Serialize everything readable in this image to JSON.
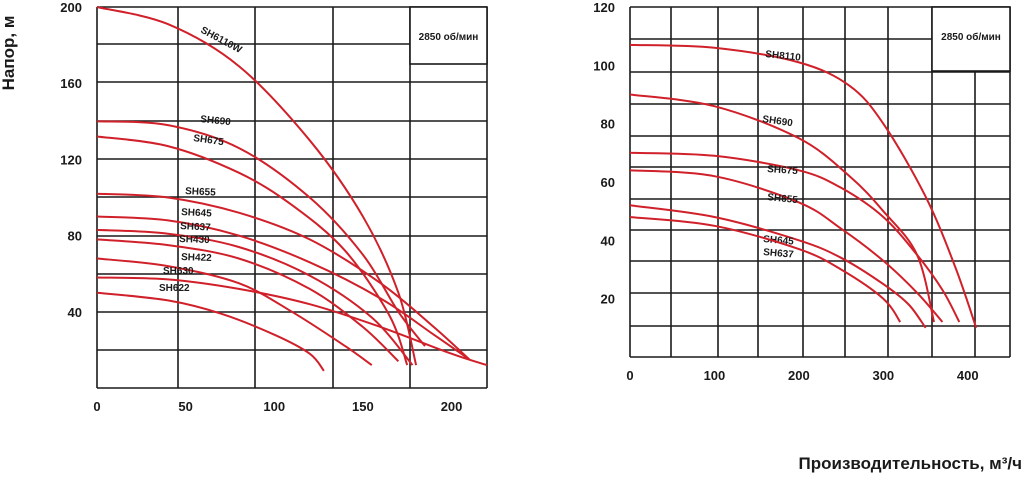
{
  "y_axis_label": "Напор, м",
  "x_axis_label": "Производительность, м³/ч",
  "chart_data": [
    {
      "type": "line",
      "speed_note": "2850 об/мин",
      "xlim": [
        0,
        220
      ],
      "ylim": [
        0,
        200
      ],
      "x_ticks": [
        0,
        50,
        100,
        150,
        200
      ],
      "y_ticks": [
        40,
        80,
        120,
        160,
        200
      ],
      "grid": true,
      "series": [
        {
          "name": "SH6110W",
          "points": [
            [
              0,
              200
            ],
            [
              40,
              191
            ],
            [
              80,
              169
            ],
            [
              120,
              130
            ],
            [
              150,
              90
            ],
            [
              170,
              50
            ],
            [
              180,
              12
            ]
          ]
        },
        {
          "name": "SH690",
          "points": [
            [
              0,
              140
            ],
            [
              40,
              138
            ],
            [
              80,
              126
            ],
            [
              120,
              100
            ],
            [
              150,
              70
            ],
            [
              170,
              40
            ],
            [
              185,
              22
            ]
          ]
        },
        {
          "name": "SH675",
          "points": [
            [
              0,
              132
            ],
            [
              40,
              127
            ],
            [
              80,
              113
            ],
            [
              110,
              96
            ],
            [
              140,
              72
            ],
            [
              165,
              38
            ],
            [
              175,
              12
            ]
          ]
        },
        {
          "name": "SH655",
          "points": [
            [
              0,
              102
            ],
            [
              40,
              100
            ],
            [
              80,
              92
            ],
            [
              120,
              78
            ],
            [
              160,
              55
            ],
            [
              190,
              32
            ],
            [
              210,
              15
            ]
          ]
        },
        {
          "name": "SH645",
          "points": [
            [
              0,
              90
            ],
            [
              40,
              88
            ],
            [
              80,
              80
            ],
            [
              120,
              66
            ],
            [
              160,
              47
            ],
            [
              190,
              28
            ],
            [
              210,
              15
            ]
          ]
        },
        {
          "name": "SH637",
          "points": [
            [
              0,
              83
            ],
            [
              40,
              81
            ],
            [
              80,
              74
            ],
            [
              120,
              59
            ],
            [
              155,
              37
            ],
            [
              178,
              12
            ]
          ]
        },
        {
          "name": "SH430",
          "points": [
            [
              0,
              78
            ],
            [
              40,
              75
            ],
            [
              80,
              68
            ],
            [
              120,
              52
            ],
            [
              150,
              32
            ],
            [
              170,
              14
            ]
          ]
        },
        {
          "name": "SH422",
          "points": [
            [
              0,
              68
            ],
            [
              40,
              64
            ],
            [
              80,
              55
            ],
            [
              110,
              40
            ],
            [
              140,
              22
            ],
            [
              155,
              12
            ]
          ]
        },
        {
          "name": "SH630",
          "points": [
            [
              0,
              58
            ],
            [
              40,
              57
            ],
            [
              80,
              52
            ],
            [
              120,
              44
            ],
            [
              160,
              32
            ],
            [
              200,
              18
            ],
            [
              220,
              12
            ]
          ]
        },
        {
          "name": "SH622",
          "points": [
            [
              0,
              50
            ],
            [
              40,
              46
            ],
            [
              70,
              39
            ],
            [
              100,
              28
            ],
            [
              120,
              18
            ],
            [
              128,
              9
            ]
          ]
        }
      ]
    },
    {
      "type": "line",
      "speed_note": "2850 об/мин",
      "xlim": [
        0,
        450
      ],
      "ylim": [
        0,
        120
      ],
      "x_ticks": [
        0,
        100,
        200,
        300,
        400
      ],
      "y_ticks": [
        20,
        40,
        60,
        80,
        100,
        120
      ],
      "grid": true,
      "series": [
        {
          "name": "SH8110",
          "points": [
            [
              0,
              107
            ],
            [
              100,
              106
            ],
            [
              200,
              101
            ],
            [
              260,
              93
            ],
            [
              300,
              80
            ],
            [
              350,
              55
            ],
            [
              385,
              31
            ],
            [
              410,
              10
            ]
          ]
        },
        {
          "name": "SH690",
          "points": [
            [
              0,
              90
            ],
            [
              100,
              86
            ],
            [
              200,
              75
            ],
            [
              260,
              62
            ],
            [
              300,
              50
            ],
            [
              340,
              35
            ],
            [
              360,
              12
            ]
          ]
        },
        {
          "name": "SH675",
          "points": [
            [
              0,
              70
            ],
            [
              100,
              69
            ],
            [
              200,
              64
            ],
            [
              250,
              58
            ],
            [
              300,
              48
            ],
            [
              340,
              35
            ],
            [
              370,
              23
            ],
            [
              390,
              12
            ]
          ]
        },
        {
          "name": "SH655",
          "points": [
            [
              0,
              64
            ],
            [
              100,
              62
            ],
            [
              200,
              53
            ],
            [
              250,
              44
            ],
            [
              300,
              33
            ],
            [
              340,
              22
            ],
            [
              370,
              12
            ]
          ]
        },
        {
          "name": "SH645",
          "points": [
            [
              0,
              52
            ],
            [
              100,
              48
            ],
            [
              200,
              40
            ],
            [
              250,
              34
            ],
            [
              300,
              25
            ],
            [
              330,
              18
            ],
            [
              350,
              10
            ]
          ]
        },
        {
          "name": "SH637",
          "points": [
            [
              0,
              48
            ],
            [
              100,
              45
            ],
            [
              200,
              37
            ],
            [
              250,
              30
            ],
            [
              300,
              20
            ],
            [
              320,
              12
            ]
          ]
        }
      ]
    }
  ],
  "colors": {
    "curve": "#d0202a",
    "grid": "#1a1a1a",
    "text": "#1a1a1a"
  }
}
